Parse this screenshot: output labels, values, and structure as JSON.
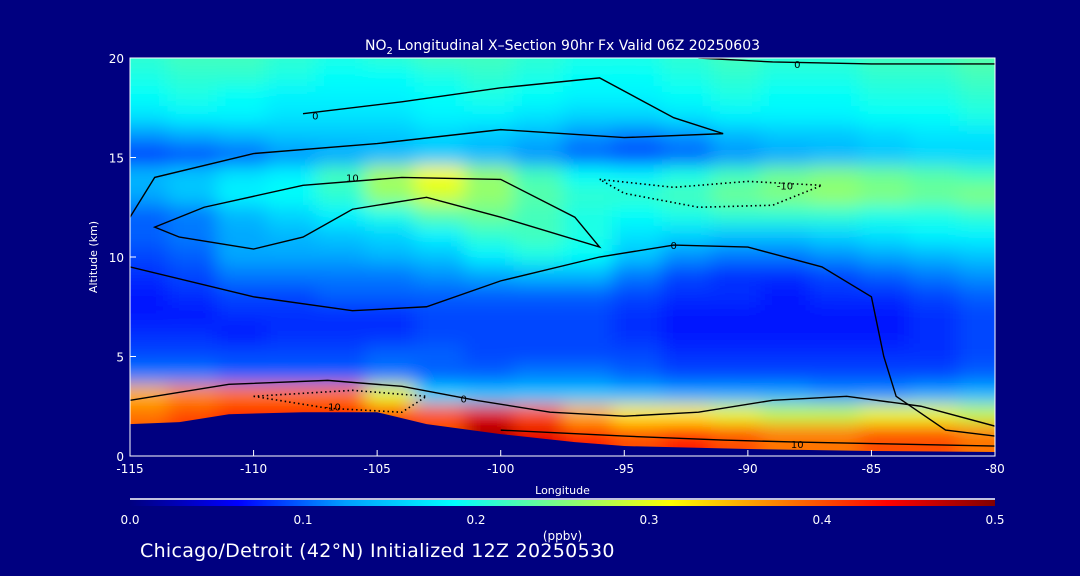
{
  "chart_data": {
    "type": "heatmap",
    "title_prefix": "NO",
    "title_sub": "2",
    "title_rest": " Longitudinal X–Section 90hr  Fx Valid 06Z 20250603",
    "xlabel": "Longitude",
    "ylabel": "Altitude (km)",
    "xlim": [
      -115,
      -80
    ],
    "ylim": [
      0,
      20
    ],
    "xticks": [
      "-115",
      "-110",
      "-105",
      "-100",
      "-95",
      "-90",
      "-85",
      "-80"
    ],
    "xtick_values": [
      -115,
      -110,
      -105,
      -100,
      -95,
      -90,
      -85,
      -80
    ],
    "yticks": [
      "0",
      "5",
      "10",
      "15",
      "20"
    ],
    "ytick_values": [
      0,
      5,
      10,
      15,
      20
    ],
    "colorbar": {
      "label": "(ppbv)",
      "range": [
        0.0,
        0.5
      ],
      "ticks": [
        "0.0",
        "0.1",
        "0.2",
        "0.3",
        "0.4",
        "0.5"
      ],
      "colors": [
        "#000080",
        "#0000ff",
        "#00a0ff",
        "#00ffff",
        "#80ff80",
        "#ffff00",
        "#ff8000",
        "#ff0000",
        "#800000"
      ]
    },
    "lon": [
      -114,
      -112,
      -110,
      -108,
      -106,
      -104,
      -102,
      -100,
      -98,
      -96,
      -94,
      -92,
      -90,
      -88,
      -86,
      -84,
      -82,
      -80
    ],
    "alt": [
      19.5,
      18.5,
      17.5,
      16.5,
      15.5,
      14.5,
      13.5,
      12.5,
      11.5,
      10.5,
      9.5,
      8.5,
      7.5,
      6.5,
      5.5,
      4.5,
      3.5,
      2.5,
      1.5,
      0.5
    ],
    "values": [
      [
        0.21,
        0.22,
        0.22,
        0.21,
        0.2,
        0.21,
        0.22,
        0.22,
        0.21,
        0.2,
        0.2,
        0.21,
        0.22,
        0.21,
        0.21,
        0.22,
        0.22,
        0.23
      ],
      [
        0.2,
        0.21,
        0.21,
        0.2,
        0.19,
        0.19,
        0.2,
        0.21,
        0.2,
        0.19,
        0.19,
        0.2,
        0.21,
        0.2,
        0.2,
        0.21,
        0.21,
        0.22
      ],
      [
        0.19,
        0.2,
        0.19,
        0.18,
        0.18,
        0.18,
        0.19,
        0.2,
        0.19,
        0.18,
        0.18,
        0.19,
        0.2,
        0.19,
        0.19,
        0.2,
        0.2,
        0.21
      ],
      [
        0.17,
        0.18,
        0.18,
        0.17,
        0.17,
        0.17,
        0.18,
        0.18,
        0.17,
        0.16,
        0.16,
        0.17,
        0.18,
        0.18,
        0.18,
        0.19,
        0.19,
        0.2
      ],
      [
        0.12,
        0.13,
        0.14,
        0.15,
        0.15,
        0.15,
        0.16,
        0.15,
        0.14,
        0.12,
        0.11,
        0.12,
        0.14,
        0.15,
        0.15,
        0.16,
        0.17,
        0.17
      ],
      [
        0.08,
        0.09,
        0.1,
        0.12,
        0.13,
        0.14,
        0.15,
        0.14,
        0.12,
        0.1,
        0.09,
        0.1,
        0.12,
        0.13,
        0.14,
        0.15,
        0.16,
        0.16
      ],
      [
        0.14,
        0.15,
        0.17,
        0.18,
        0.22,
        0.27,
        0.31,
        0.26,
        0.22,
        0.19,
        0.18,
        0.2,
        0.22,
        0.24,
        0.25,
        0.24,
        0.23,
        0.22
      ],
      [
        0.13,
        0.15,
        0.18,
        0.19,
        0.21,
        0.26,
        0.29,
        0.26,
        0.23,
        0.21,
        0.21,
        0.22,
        0.24,
        0.25,
        0.26,
        0.25,
        0.24,
        0.25
      ],
      [
        0.1,
        0.11,
        0.14,
        0.16,
        0.18,
        0.2,
        0.23,
        0.24,
        0.22,
        0.2,
        0.19,
        0.2,
        0.21,
        0.21,
        0.21,
        0.2,
        0.2,
        0.21
      ],
      [
        0.1,
        0.11,
        0.13,
        0.14,
        0.15,
        0.16,
        0.18,
        0.21,
        0.22,
        0.2,
        0.17,
        0.16,
        0.15,
        0.15,
        0.16,
        0.17,
        0.18,
        0.18
      ],
      [
        0.09,
        0.1,
        0.13,
        0.13,
        0.13,
        0.14,
        0.15,
        0.18,
        0.2,
        0.19,
        0.15,
        0.12,
        0.11,
        0.11,
        0.12,
        0.13,
        0.14,
        0.15
      ],
      [
        0.08,
        0.09,
        0.11,
        0.11,
        0.11,
        0.11,
        0.12,
        0.13,
        0.14,
        0.14,
        0.11,
        0.09,
        0.08,
        0.08,
        0.09,
        0.1,
        0.11,
        0.12
      ],
      [
        0.07,
        0.08,
        0.09,
        0.09,
        0.1,
        0.1,
        0.1,
        0.1,
        0.1,
        0.1,
        0.09,
        0.08,
        0.08,
        0.07,
        0.08,
        0.08,
        0.09,
        0.1
      ],
      [
        0.07,
        0.07,
        0.08,
        0.08,
        0.08,
        0.08,
        0.09,
        0.09,
        0.09,
        0.09,
        0.08,
        0.07,
        0.07,
        0.07,
        0.07,
        0.07,
        0.08,
        0.09
      ],
      [
        0.08,
        0.08,
        0.07,
        0.08,
        0.08,
        0.08,
        0.09,
        0.09,
        0.09,
        0.09,
        0.08,
        0.07,
        0.07,
        0.07,
        0.07,
        0.07,
        0.08,
        0.09
      ],
      [
        0.09,
        0.09,
        0.09,
        0.09,
        0.09,
        0.1,
        0.1,
        0.09,
        0.09,
        0.09,
        0.09,
        0.08,
        0.08,
        0.08,
        0.08,
        0.08,
        0.08,
        0.09
      ],
      [
        0.11,
        0.11,
        0.1,
        0.1,
        0.1,
        0.11,
        0.1,
        0.1,
        0.11,
        0.11,
        0.1,
        0.09,
        0.09,
        0.09,
        0.09,
        0.09,
        0.09,
        0.1
      ],
      [
        0.35,
        0.37,
        0.38,
        0.38,
        0.38,
        0.3,
        0.16,
        0.15,
        0.15,
        0.15,
        0.14,
        0.13,
        0.13,
        0.13,
        0.12,
        0.12,
        0.13,
        0.14
      ],
      [
        0.38,
        0.4,
        0.42,
        0.42,
        0.42,
        0.4,
        0.4,
        0.45,
        0.4,
        0.35,
        0.32,
        0.32,
        0.3,
        0.28,
        0.28,
        0.3,
        0.3,
        0.28
      ],
      [
        0.4,
        0.42,
        0.44,
        0.44,
        0.44,
        0.42,
        0.4,
        0.48,
        0.45,
        0.42,
        0.4,
        0.42,
        0.4,
        0.38,
        0.38,
        0.4,
        0.4,
        0.38
      ]
    ],
    "terrain": [
      [
        -115,
        1.6
      ],
      [
        -113,
        1.7
      ],
      [
        -111,
        2.1
      ],
      [
        -108,
        2.2
      ],
      [
        -105,
        2.2
      ],
      [
        -103,
        1.6
      ],
      [
        -100,
        1.1
      ],
      [
        -97,
        0.7
      ],
      [
        -95,
        0.5
      ],
      [
        -90,
        0.35
      ],
      [
        -85,
        0.25
      ],
      [
        -80,
        0.2
      ]
    ],
    "contours": [
      {
        "level": "0",
        "style": "solid",
        "label_at": [
          -88,
          19.7
        ],
        "points": [
          [
            -92,
            20
          ],
          [
            -89,
            19.8
          ],
          [
            -85,
            19.7
          ],
          [
            -80,
            19.7
          ]
        ]
      },
      {
        "level": "0",
        "style": "solid",
        "label_at": [
          -107.5,
          17.1
        ],
        "points": [
          [
            -115,
            12
          ],
          [
            -114,
            14
          ],
          [
            -110,
            15.2
          ],
          [
            -105,
            15.7
          ],
          [
            -100,
            16.4
          ],
          [
            -95,
            16
          ],
          [
            -91,
            16.2
          ],
          [
            -93,
            17
          ],
          [
            -96,
            19
          ],
          [
            -100,
            18.5
          ],
          [
            -104,
            17.8
          ],
          [
            -108,
            17.2
          ]
        ]
      },
      {
        "level": "10",
        "style": "solid",
        "label_at": [
          -106,
          14.0
        ],
        "points": [
          [
            -113,
            11
          ],
          [
            -114,
            11.5
          ],
          [
            -112,
            12.5
          ],
          [
            -108,
            13.6
          ],
          [
            -104,
            14
          ],
          [
            -100,
            13.9
          ],
          [
            -97,
            12
          ],
          [
            -96,
            10.5
          ],
          [
            -100,
            12
          ],
          [
            -103,
            13
          ],
          [
            -106,
            12.4
          ],
          [
            -108,
            11
          ],
          [
            -110,
            10.4
          ],
          [
            -113,
            11
          ]
        ]
      },
      {
        "level": "0",
        "style": "solid",
        "label_at": [
          -93,
          10.6
        ],
        "points": [
          [
            -115,
            9.5
          ],
          [
            -110,
            8
          ],
          [
            -106,
            7.3
          ],
          [
            -103,
            7.5
          ],
          [
            -100,
            8.8
          ],
          [
            -96,
            10
          ],
          [
            -93,
            10.6
          ],
          [
            -90,
            10.5
          ],
          [
            -87,
            9.5
          ],
          [
            -85,
            8
          ],
          [
            -84.5,
            5
          ],
          [
            -84,
            3
          ],
          [
            -82,
            1.3
          ],
          [
            -80,
            1
          ]
        ]
      },
      {
        "level": "0",
        "style": "solid",
        "label_at": [
          -101.5,
          2.9
        ],
        "points": [
          [
            -115,
            2.8
          ],
          [
            -111,
            3.6
          ],
          [
            -107,
            3.8
          ],
          [
            -104,
            3.5
          ],
          [
            -101,
            2.8
          ],
          [
            -98,
            2.2
          ],
          [
            -95,
            2
          ],
          [
            -92,
            2.2
          ],
          [
            -89,
            2.8
          ],
          [
            -86,
            3
          ],
          [
            -83,
            2.5
          ],
          [
            -80,
            1.5
          ]
        ]
      },
      {
        "level": "10",
        "style": "solid",
        "label_at": [
          -88,
          0.6
        ],
        "points": [
          [
            -100,
            1.3
          ],
          [
            -95,
            1.0
          ],
          [
            -91,
            0.8
          ],
          [
            -88,
            0.7
          ],
          [
            -84,
            0.6
          ],
          [
            -80,
            0.5
          ]
        ]
      },
      {
        "level": "-10",
        "style": "dotted",
        "label_at": [
          -88.5,
          13.6
        ],
        "points": [
          [
            -96,
            13.9
          ],
          [
            -93,
            13.5
          ],
          [
            -90,
            13.8
          ],
          [
            -87,
            13.6
          ],
          [
            -89,
            12.6
          ],
          [
            -92,
            12.5
          ],
          [
            -95,
            13.2
          ],
          [
            -96,
            13.9
          ]
        ]
      },
      {
        "level": "-10",
        "style": "dotted",
        "label_at": [
          -106.8,
          2.5
        ],
        "points": [
          [
            -110,
            3
          ],
          [
            -107,
            2.4
          ],
          [
            -104,
            2.2
          ],
          [
            -103,
            3
          ],
          [
            -106,
            3.3
          ],
          [
            -110,
            3
          ]
        ]
      }
    ]
  },
  "footer": "Chicago/Detroit (42°N) Initialized 12Z 20250530"
}
